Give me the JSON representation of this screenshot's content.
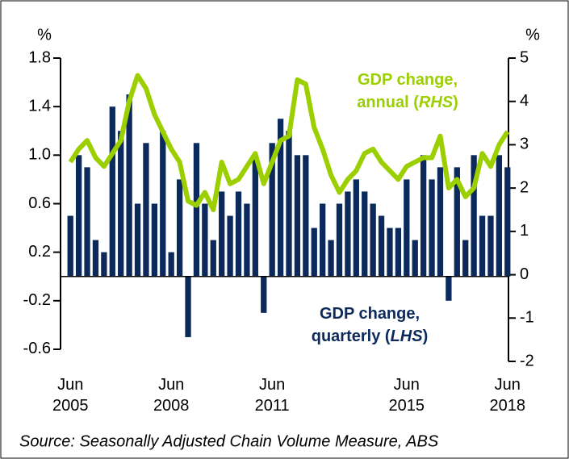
{
  "chart_data": {
    "type": "bar_line",
    "ylabel": "%",
    "y2label": "%",
    "categories": [
      "Jun 2005",
      null,
      null,
      null,
      null,
      null,
      null,
      null,
      null,
      null,
      null,
      null,
      "Jun 2008",
      null,
      null,
      null,
      null,
      null,
      null,
      null,
      null,
      null,
      null,
      null,
      "Jun 2011",
      null,
      null,
      null,
      null,
      null,
      null,
      null,
      null,
      null,
      null,
      null,
      null,
      null,
      null,
      null,
      "Jun 2015",
      null,
      null,
      null,
      null,
      null,
      null,
      null,
      null,
      null,
      null,
      null,
      "Jun 2018"
    ],
    "series": [
      {
        "name": "GDP change, quarterly (LHS)",
        "type": "bar",
        "color": "#0b2a5b",
        "values": [
          0.5,
          1.0,
          0.9,
          0.3,
          0.2,
          1.4,
          1.2,
          1.5,
          0.6,
          1.1,
          0.6,
          1.2,
          0.2,
          0.8,
          -0.5,
          1.1,
          0.6,
          0.3,
          0.7,
          0.5,
          0.7,
          0.6,
          1.0,
          -0.3,
          1.1,
          1.3,
          1.2,
          1.0,
          1.0,
          0.4,
          0.6,
          0.3,
          0.6,
          0.7,
          0.8,
          0.7,
          0.6,
          0.5,
          0.4,
          0.4,
          0.8,
          0.3,
          1.0,
          0.8,
          0.9,
          -0.2,
          0.9,
          0.3,
          1.0,
          0.5,
          0.5,
          1.0,
          0.9
        ]
      },
      {
        "name": "GDP change, annual (RHS)",
        "type": "line",
        "axis": "y2",
        "color": "#9bcf00",
        "values": [
          2.6,
          2.9,
          3.1,
          2.7,
          2.5,
          2.8,
          3.1,
          4.0,
          4.6,
          4.3,
          3.7,
          3.3,
          2.9,
          2.6,
          1.7,
          1.6,
          1.9,
          1.5,
          2.6,
          2.1,
          2.2,
          2.5,
          2.8,
          2.1,
          2.6,
          3.1,
          3.2,
          4.5,
          4.4,
          3.4,
          2.9,
          2.3,
          1.9,
          2.2,
          2.4,
          2.8,
          2.9,
          2.6,
          2.4,
          2.2,
          2.5,
          2.6,
          2.7,
          2.7,
          3.2,
          2.0,
          2.2,
          1.8,
          2.0,
          2.8,
          2.5,
          3.0,
          3.3
        ]
      }
    ],
    "annotations": [
      {
        "lines": [
          [
            "GDP change,"
          ],
          [
            "annual (",
            "RHS",
            ")"
          ]
        ],
        "color": "#9bcf00"
      },
      {
        "lines": [
          [
            "GDP change,"
          ],
          [
            "quarterly (",
            "LHS",
            ")"
          ]
        ],
        "color": "#0b2a5b"
      }
    ],
    "ylim": [
      -0.7,
      1.8
    ],
    "yticks": [
      -0.6,
      -0.2,
      0.2,
      0.6,
      {
        "value": 1,
        "label": "1.0"
      },
      1.4,
      1.8
    ],
    "y2lim": [
      -2,
      5
    ],
    "y2ticks": [
      -2,
      -1,
      0,
      1,
      2,
      3,
      4,
      5
    ],
    "source": "Source: Seasonally Adjusted Chain Volume Measure, ABS"
  }
}
